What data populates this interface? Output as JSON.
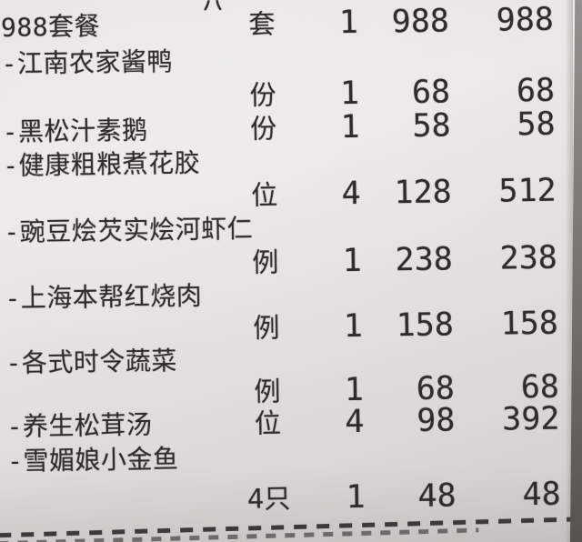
{
  "receipt": {
    "lines": [
      {
        "name": "988套餐",
        "unit": "套",
        "qty": "1",
        "unit_price": "988",
        "amount": "988"
      },
      {
        "name": "-江南农家酱鸭"
      },
      {
        "unit": "份",
        "qty": "1",
        "unit_price": "68",
        "amount": "68"
      },
      {
        "name": "-黑松汁素鹅",
        "unit": "份",
        "qty": "1",
        "unit_price": "58",
        "amount": "58"
      },
      {
        "name": "-健康粗粮煮花胶"
      },
      {
        "unit": "位",
        "qty": "4",
        "unit_price": "128",
        "amount": "512"
      },
      {
        "name": "-豌豆烩芡实烩河虾仁"
      },
      {
        "unit": "例",
        "qty": "1",
        "unit_price": "238",
        "amount": "238"
      },
      {
        "name": "-上海本帮红烧肉"
      },
      {
        "unit": "例",
        "qty": "1",
        "unit_price": "158",
        "amount": "158"
      },
      {
        "name": "-各式时令蔬菜"
      },
      {
        "unit": "例",
        "qty": "1",
        "unit_price": "68",
        "amount": "68"
      },
      {
        "name": "-养生松茸汤",
        "unit": "位",
        "qty": "4",
        "unit_price": "98",
        "amount": "392"
      },
      {
        "name": "-雪媚娘小金鱼"
      },
      {
        "unit": "4只",
        "qty": "1",
        "unit_price": "48",
        "amount": "48"
      }
    ],
    "colors": {
      "paper_light": "#ebe9e5",
      "paper_dark": "#cfcdc9",
      "ink": "#2e2c29",
      "edge_shadow_top": "#93918d",
      "edge_shadow_bottom": "#57534f"
    }
  }
}
